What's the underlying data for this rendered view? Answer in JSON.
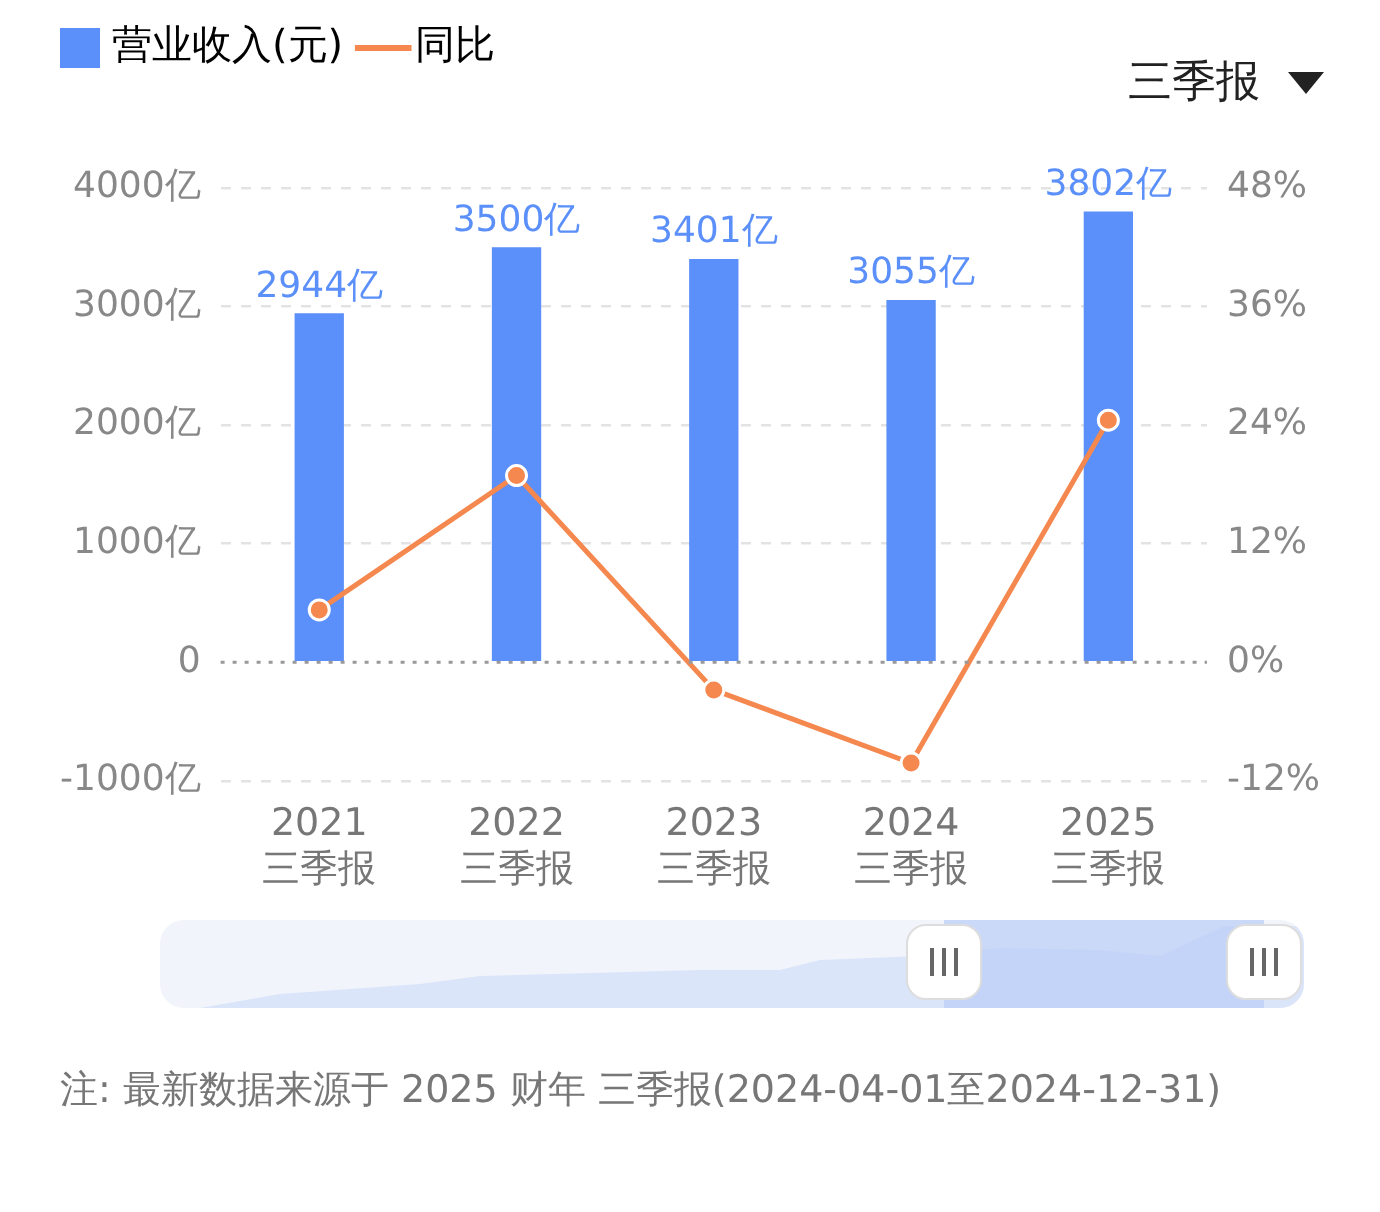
{
  "chart_data": {
    "type": "bar",
    "categories": [
      "2021\n三季报",
      "2022\n三季报",
      "2023\n三季报",
      "2024\n三季报",
      "2025\n三季报"
    ],
    "series": [
      {
        "name": "营业收入(元)",
        "color": "#5b8ff9",
        "values": [
          2944,
          3500,
          3401,
          3055,
          3802
        ],
        "value_labels": [
          "2944亿",
          "3500亿",
          "3401亿",
          "3055亿",
          "3802亿"
        ]
      },
      {
        "name": "同比",
        "type": "line",
        "axis": "y2",
        "color": "#f5884f",
        "values": [
          5.3,
          18.9,
          -2.8,
          -10.2,
          24.5
        ]
      }
    ],
    "ylim": [
      -1000,
      4000
    ],
    "yticks": [
      {
        "value": -1000,
        "label": "-1000亿"
      },
      0,
      {
        "value": 1000,
        "label": "1000亿"
      },
      {
        "value": 2000,
        "label": "2000亿"
      },
      {
        "value": 3000,
        "label": "3000亿"
      },
      {
        "value": 4000,
        "label": "4000亿"
      }
    ],
    "y2lim": [
      -12,
      48
    ],
    "y2ticks": [
      {
        "value": -12,
        "label": "-12%"
      },
      {
        "value": 0,
        "label": "0%"
      },
      {
        "value": 12,
        "label": "12%"
      },
      {
        "value": 24,
        "label": "24%"
      },
      {
        "value": 36,
        "label": "36%"
      },
      {
        "value": 48,
        "label": "48%"
      }
    ],
    "ref_lines": [
      {
        "axis": "y",
        "value": 0,
        "color": "#999999",
        "line_style": "dotted"
      }
    ],
    "grid": "y",
    "legend": "top left",
    "marker": "circle",
    "line_style": "solid",
    "annotations": [
      "三季报",
      "注: 最新数据来源于 2025 财年 三季报(2024-04-01至2024-12-31)"
    ]
  }
}
